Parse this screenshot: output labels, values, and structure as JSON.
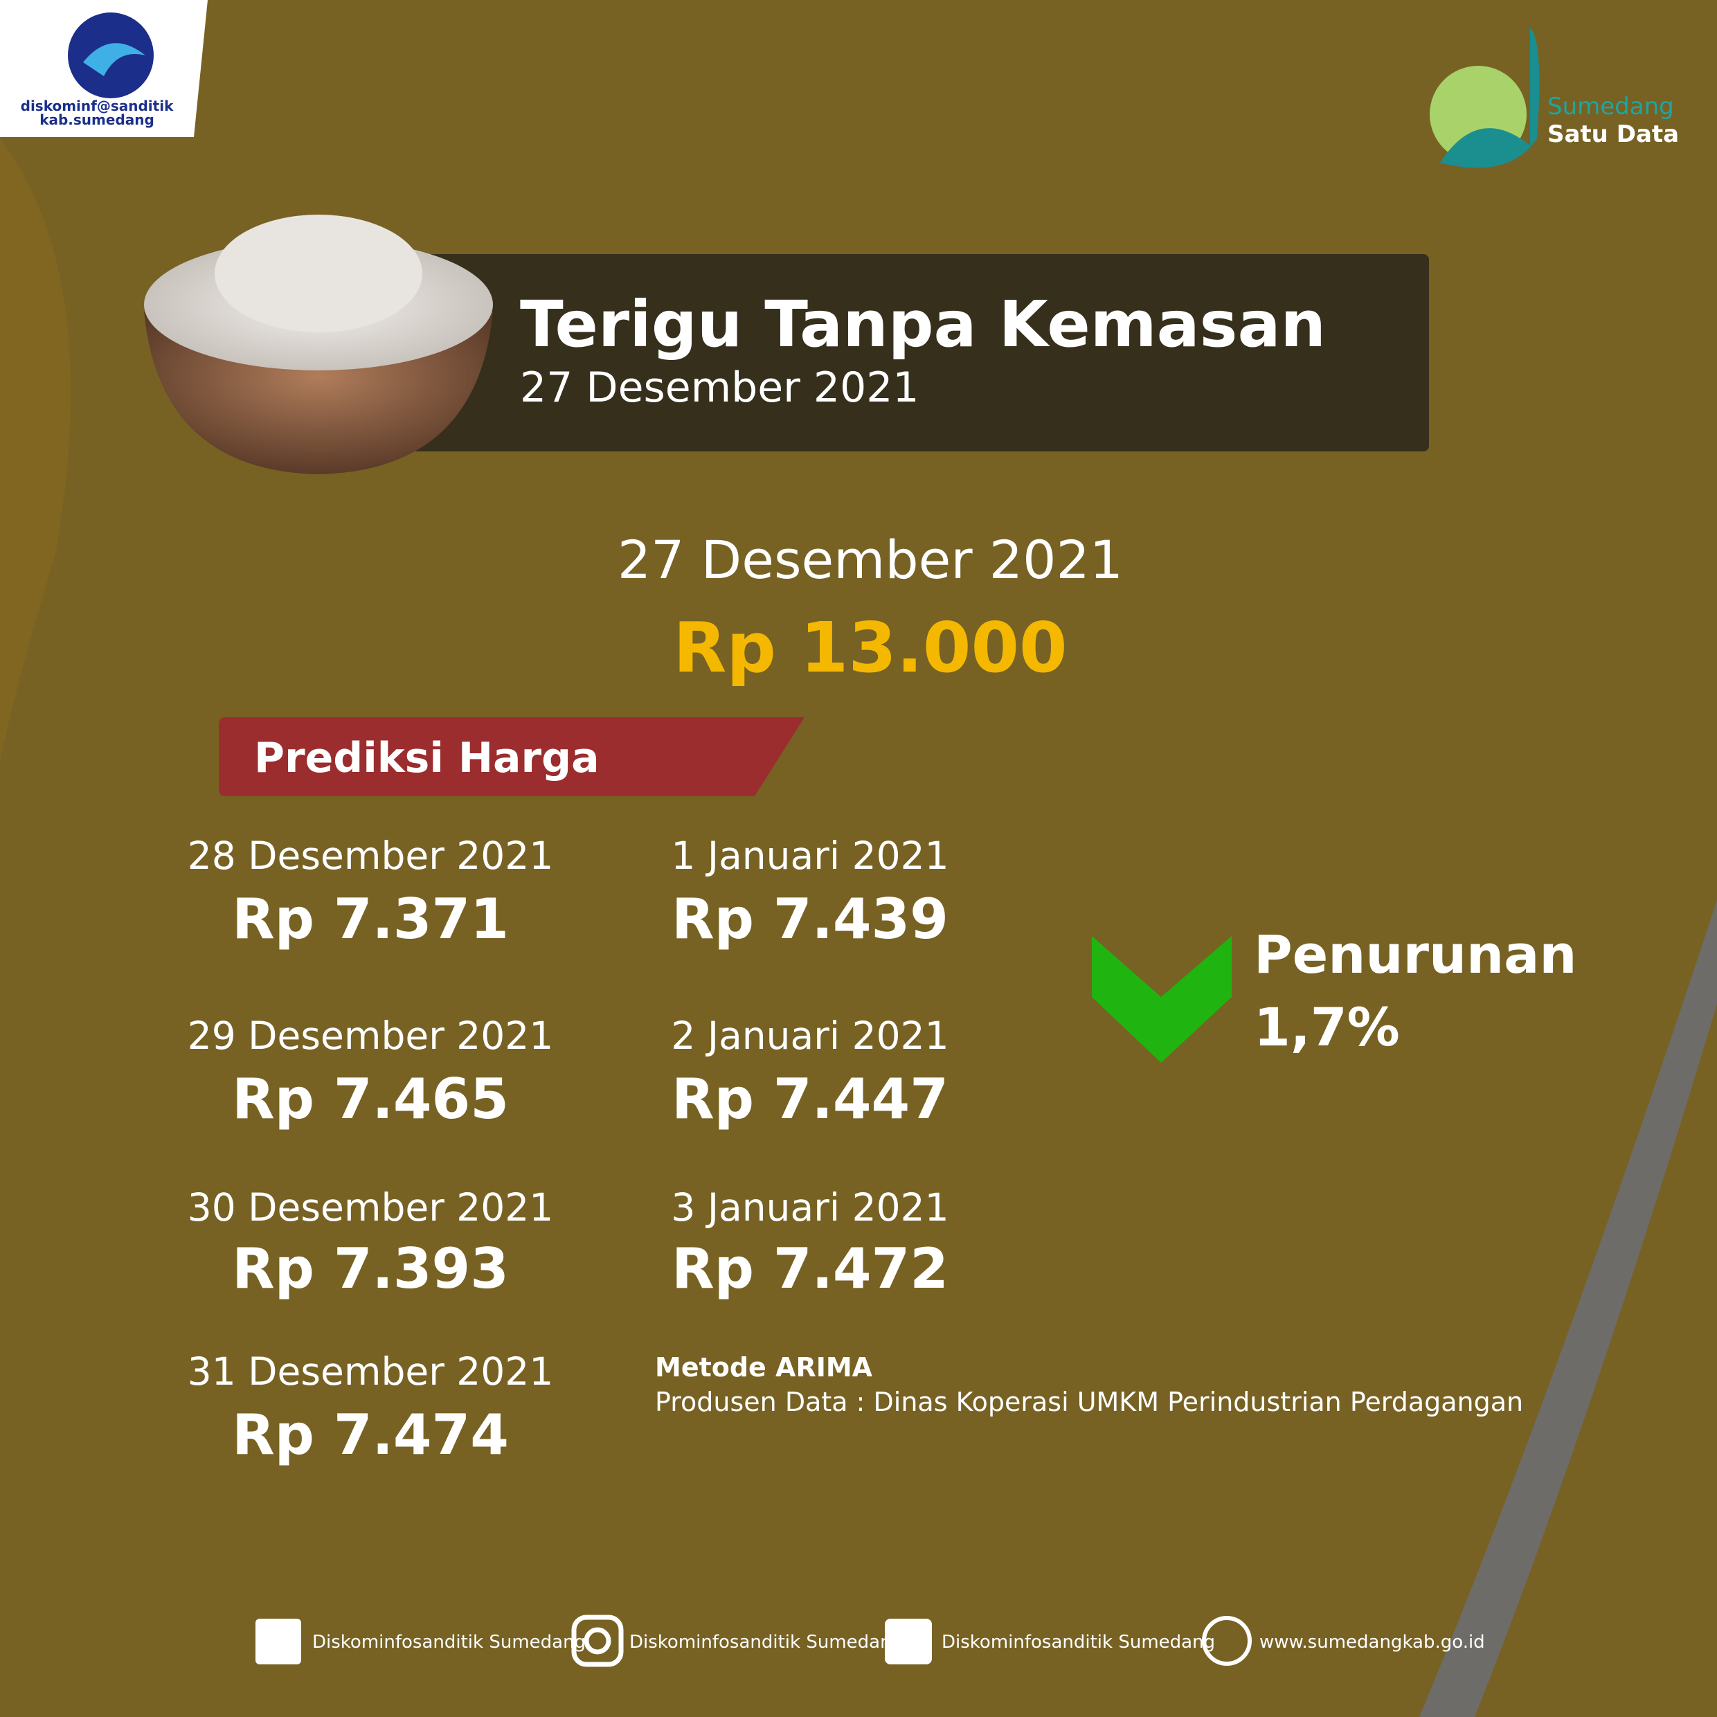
{
  "header": {
    "left_logo": [
      "diskominf@sanditik",
      "kab.sumedang"
    ],
    "right_logo": [
      "Sumedang",
      "Satu Data"
    ]
  },
  "title": {
    "text": "Terigu Tanpa Kemasan",
    "date": "27 Desember 2021"
  },
  "current": {
    "date": "27 Desember 2021",
    "price": "Rp 13.000"
  },
  "prediction": {
    "label": "Prediksi Harga",
    "items": [
      {
        "date": "28 Desember 2021",
        "price": "Rp 7.371"
      },
      {
        "date": "29 Desember 2021",
        "price": "Rp 7.465"
      },
      {
        "date": "30 Desember 2021",
        "price": "Rp 7.393"
      },
      {
        "date": "31 Desember 2021",
        "price": "Rp 7.474"
      },
      {
        "date": "1 Januari 2021",
        "price": "Rp 7.439"
      },
      {
        "date": "2 Januari 2021",
        "price": "Rp 7.447"
      },
      {
        "date": "3 Januari 2021",
        "price": "Rp 7.472"
      }
    ]
  },
  "trend": {
    "label": "Penurunan",
    "value": "1,7%"
  },
  "method": "Metode ARIMA",
  "producer": "Produsen Data : Dinas Koperasi UMKM Perindustrian Perdagangan",
  "footer": [
    "Diskominfosanditik Sumedang",
    "Diskominfosanditik Sumedang",
    "Diskominfosanditik Sumedang",
    "www.sumedangkab.go.id"
  ]
}
